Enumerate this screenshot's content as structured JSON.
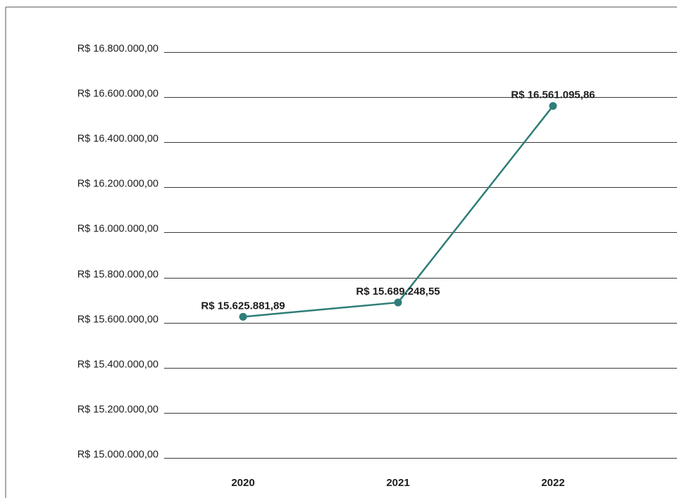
{
  "chart_data": {
    "type": "line",
    "title": "",
    "xlabel": "",
    "ylabel": "",
    "categories": [
      "2020",
      "2021",
      "2022"
    ],
    "series": [
      {
        "values": [
          15625881.89,
          15689248.55,
          16561095.86
        ],
        "data_labels": [
          "R$ 15.625.881,89",
          "R$ 15.689.248,55",
          "R$ 16.561.095,86"
        ],
        "color": "#2e7d78"
      }
    ],
    "ylim": [
      15000000,
      16800000
    ],
    "y_ticks": [
      15000000,
      15200000,
      15400000,
      15600000,
      15800000,
      16000000,
      16200000,
      16400000,
      16600000,
      16800000
    ],
    "y_tick_labels": [
      "R$ 15.000.000,00",
      "R$ 15.200.000,00",
      "R$ 15.400.000,00",
      "R$ 15.600.000,00",
      "R$ 15.800.000,00",
      "R$ 16.000.000,00",
      "R$ 16.200.000,00",
      "R$ 16.400.000,00",
      "R$ 16.600.000,00",
      "R$ 16.800.000,00"
    ],
    "grid": true,
    "legend": "none",
    "colors": {
      "line": "#2e7d78",
      "marker": "#2e7d78",
      "grid": "#3a3a3a",
      "text": "#1d1d1d"
    }
  }
}
